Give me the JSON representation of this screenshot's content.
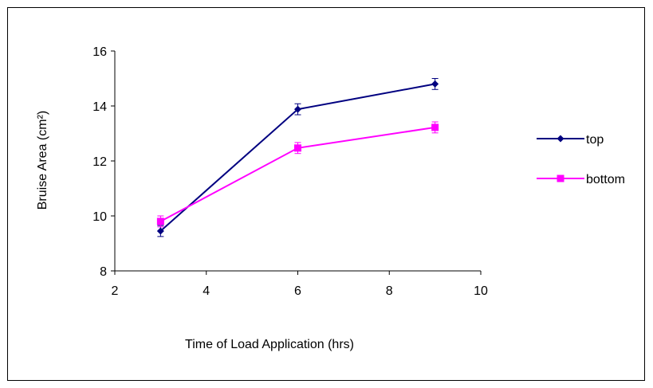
{
  "chart_data": {
    "type": "line",
    "xlabel": "Time of Load Application (hrs)",
    "ylabel": "Bruise Area (cm²)",
    "xlim": [
      2,
      10
    ],
    "ylim": [
      8,
      16
    ],
    "xticks": [
      2,
      4,
      6,
      8,
      10
    ],
    "yticks": [
      8,
      10,
      12,
      14,
      16
    ],
    "grid": false,
    "legend_position": "right",
    "series": [
      {
        "name": "top",
        "color": "#000080",
        "marker": "diamond",
        "x": [
          3,
          6,
          9
        ],
        "y": [
          9.45,
          13.88,
          14.8
        ],
        "error": [
          0.2,
          0.2,
          0.2
        ]
      },
      {
        "name": "bottom",
        "color": "#ff00ff",
        "marker": "square",
        "x": [
          3,
          6,
          9
        ],
        "y": [
          9.8,
          12.47,
          13.22
        ],
        "error": [
          0.2,
          0.2,
          0.2
        ]
      }
    ]
  }
}
